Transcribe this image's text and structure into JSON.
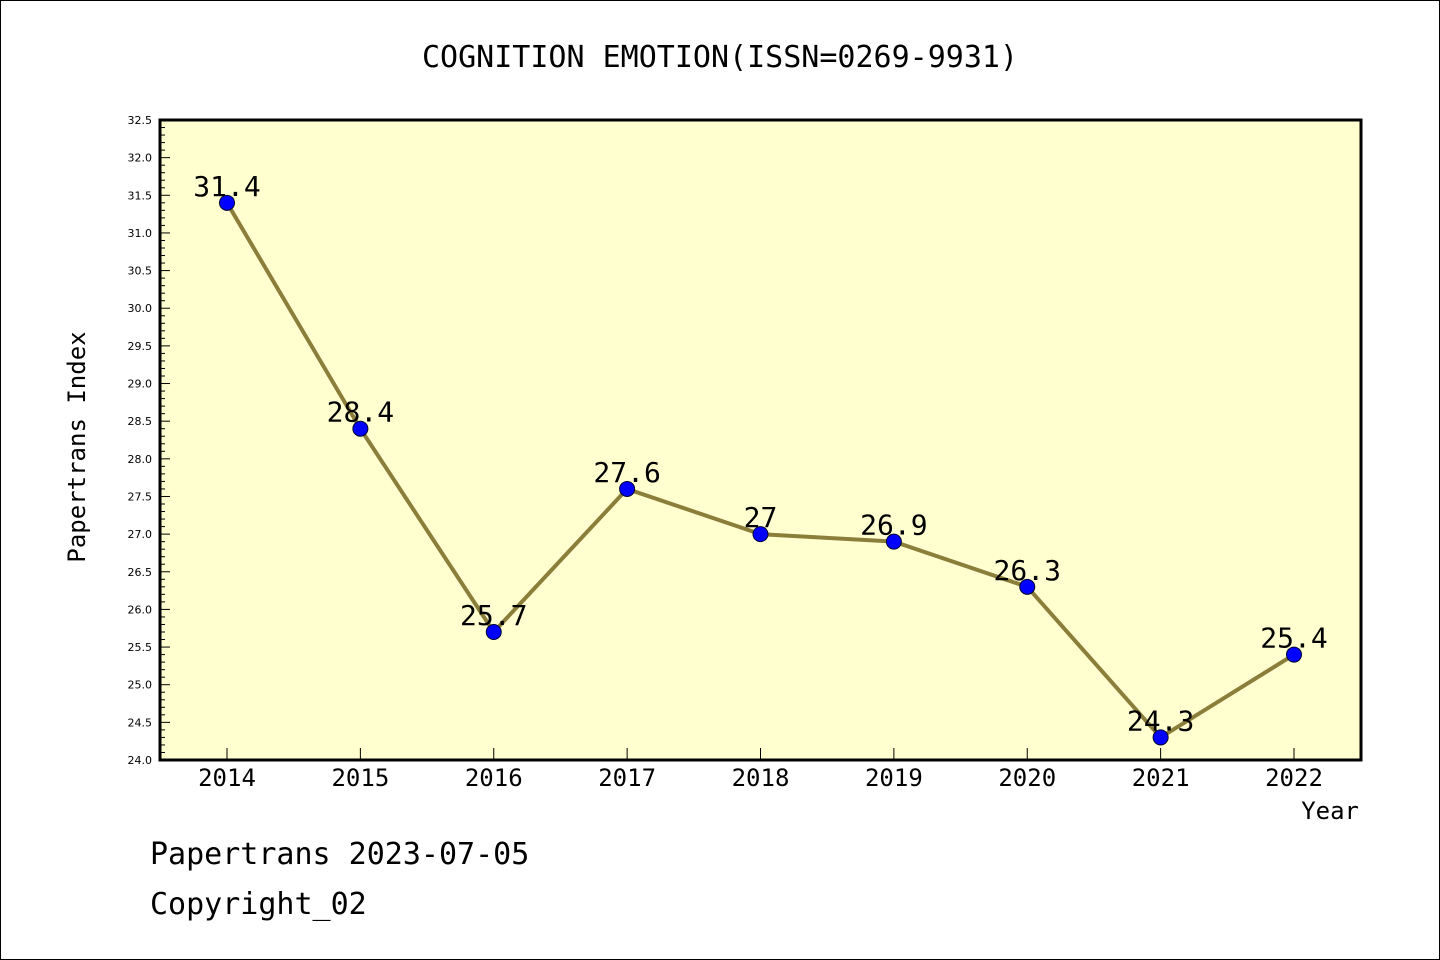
{
  "chart_data": {
    "type": "line",
    "title": "COGNITION EMOTION(ISSN=0269-9931)",
    "xlabel": "Year",
    "ylabel": "Papertrans Index",
    "categories": [
      "2014",
      "2015",
      "2016",
      "2017",
      "2018",
      "2019",
      "2020",
      "2021",
      "2022"
    ],
    "values": [
      31.4,
      28.4,
      25.7,
      27.6,
      27.0,
      26.9,
      26.3,
      24.3,
      25.4
    ],
    "data_labels": [
      "31.4",
      "28.4",
      "25.7",
      "27.6",
      "27",
      "26.9",
      "26.3",
      "24.3",
      "25.4"
    ],
    "ylim": [
      24.0,
      32.5
    ],
    "yticks": [
      "24.0",
      "24.5",
      "25.0",
      "25.5",
      "26.0",
      "26.5",
      "27.0",
      "27.5",
      "28.0",
      "28.5",
      "29.0",
      "29.5",
      "30.0",
      "30.5",
      "31.0",
      "31.5",
      "32.0",
      "32.5"
    ],
    "grid": false,
    "colors": {
      "plot_background": "#ffffd0",
      "line": "#8b7d3a",
      "marker": "#0000ff"
    }
  },
  "footer": {
    "line1": "Papertrans 2023-07-05",
    "line2": "Copyright_02"
  }
}
